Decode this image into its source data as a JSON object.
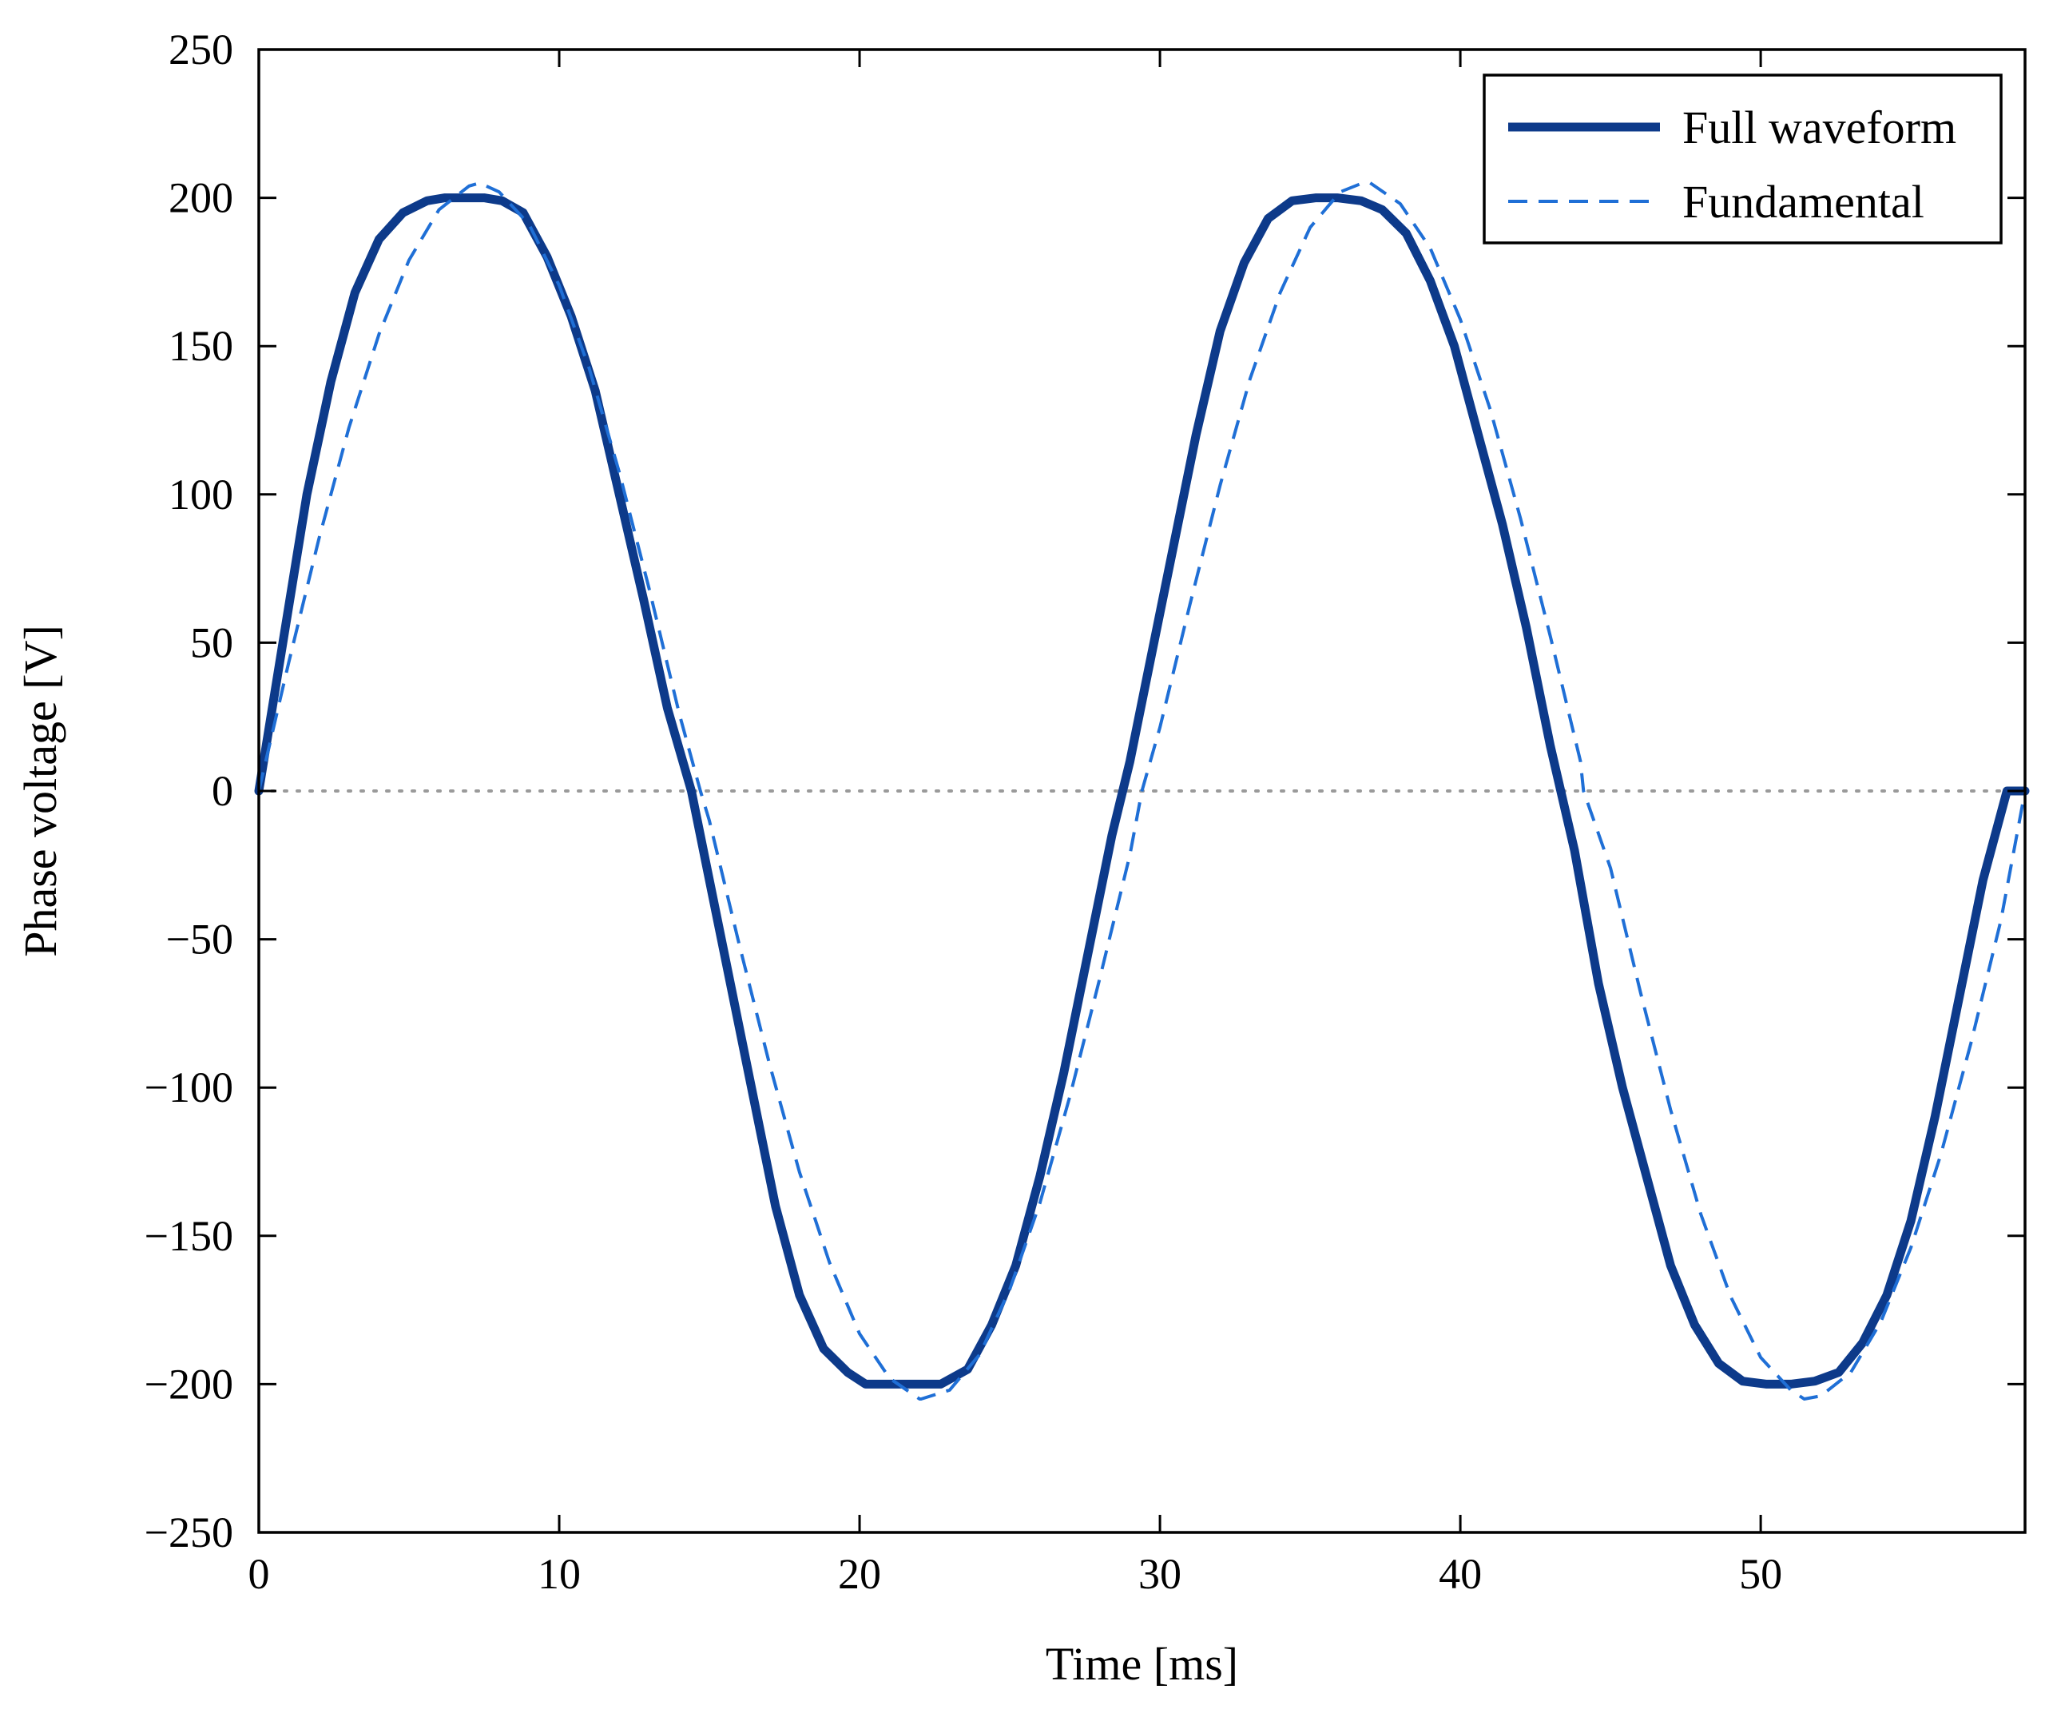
{
  "chart_data": {
    "type": "line",
    "title": "",
    "xlabel": "Time [ms]",
    "ylabel": "Phase voltage [V]",
    "xlim": [
      0,
      58.8
    ],
    "ylim": [
      -250,
      250
    ],
    "xticks": [
      0,
      10,
      20,
      30,
      40,
      50
    ],
    "yticks": [
      250,
      200,
      150,
      100,
      50,
      0,
      -50,
      -100,
      -150,
      -200,
      -250
    ],
    "xtick_labels": [
      "0",
      "10",
      "20",
      "30",
      "40",
      "50"
    ],
    "ytick_labels": [
      "250",
      "200",
      "150",
      "100",
      "50",
      "0",
      "−50",
      "−100",
      "−150",
      "−200",
      "−250"
    ],
    "grid": false,
    "zero_reference_line": true,
    "legend_position": "top-right",
    "series": [
      {
        "name": "Full waveform",
        "style": "solid-thick",
        "color": "#0d3a8a",
        "x": [
          0,
          0.8,
          1.6,
          2.4,
          3.2,
          4.0,
          4.8,
          5.6,
          6.2,
          7.0,
          7.5,
          8.1,
          8.8,
          9.6,
          10.4,
          11.2,
          12.0,
          12.8,
          13.6,
          14.4,
          15.0,
          15.6,
          16.4,
          17.2,
          18.0,
          18.8,
          19.6,
          20.2,
          20.9,
          21.8,
          22.7,
          23.6,
          24.4,
          25.2,
          26.0,
          26.8,
          27.6,
          28.4,
          29.0,
          29.6,
          30.4,
          31.2,
          32.0,
          32.8,
          33.6,
          34.4,
          35.2,
          35.9,
          36.7,
          37.4,
          38.2,
          39.0,
          39.8,
          40.6,
          41.4,
          42.2,
          43.0,
          43.8,
          44.6,
          45.4,
          46.2,
          47.0,
          47.8,
          48.6,
          49.4,
          50.2,
          51.0,
          51.8,
          52.6,
          53.4,
          54.2,
          55.0,
          55.8,
          56.6,
          57.4,
          58.2,
          58.8
        ],
        "y": [
          0,
          50,
          100,
          138,
          168,
          186,
          195,
          199,
          200,
          200,
          200,
          199,
          195,
          180,
          160,
          135,
          100,
          65,
          28,
          0,
          -30,
          -60,
          -100,
          -140,
          -170,
          -188,
          -196,
          -200,
          -200,
          -200,
          -200,
          -195,
          -180,
          -160,
          -130,
          -95,
          -55,
          -15,
          10,
          40,
          80,
          120,
          155,
          178,
          193,
          199,
          200,
          200,
          199,
          196,
          188,
          172,
          150,
          120,
          90,
          55,
          15,
          -20,
          -65,
          -100,
          -130,
          -160,
          -180,
          -193,
          -199,
          -200,
          -200,
          -199,
          -196,
          -186,
          -170,
          -145,
          -110,
          -70,
          -30,
          0,
          0
        ]
      },
      {
        "name": "Fundamental",
        "style": "dashed",
        "color": "#1f6fd6",
        "x": [
          0,
          1,
          2,
          3,
          4,
          5,
          6,
          7,
          7.35,
          8,
          9,
          10,
          11,
          12,
          13,
          14,
          14.7,
          15,
          16,
          17,
          18,
          19,
          20,
          21,
          22,
          22.05,
          23,
          24,
          25,
          26,
          27,
          28,
          29,
          29.4,
          30,
          31,
          32,
          33,
          34,
          35,
          36,
          36.75,
          37,
          38,
          39,
          40,
          41,
          42,
          43,
          44,
          44.1,
          45,
          46,
          47,
          48,
          49,
          50,
          51,
          51.45,
          52,
          53,
          54,
          55,
          56,
          57,
          58,
          58.8
        ],
        "y": [
          0,
          43.5,
          85,
          122.5,
          154,
          179,
          196,
          204,
          205,
          202,
          191,
          170.5,
          142.5,
          107.5,
          68,
          26,
          0,
          -10,
          -52,
          -92,
          -128.5,
          -159,
          -183,
          -198,
          -205,
          -205,
          -202,
          -190,
          -168,
          -139,
          -103,
          -63,
          -21.5,
          0,
          21.5,
          63,
          103,
          139,
          168,
          190,
          202,
          205,
          205,
          198,
          183,
          159,
          128.5,
          92,
          52,
          10,
          0,
          -26,
          -68,
          -107.5,
          -142.5,
          -170.5,
          -191,
          -202,
          -205,
          -204,
          -196,
          -179,
          -154,
          -122.5,
          -85,
          -43.5,
          0
        ]
      }
    ]
  }
}
